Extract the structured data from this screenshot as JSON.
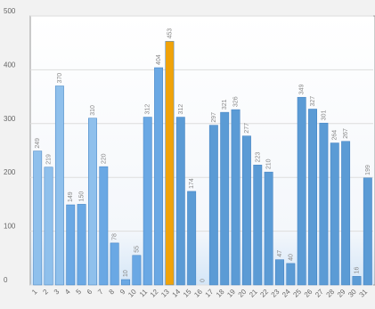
{
  "chart_data": {
    "type": "bar",
    "categories": [
      "1",
      "2",
      "3",
      "4",
      "5",
      "6",
      "7",
      "8",
      "9",
      "10",
      "11",
      "12",
      "13",
      "14",
      "15",
      "16",
      "17",
      "18",
      "19",
      "20",
      "21",
      "22",
      "23",
      "24",
      "25",
      "26",
      "27",
      "28",
      "29",
      "30",
      "31"
    ],
    "values": [
      249,
      219,
      370,
      149,
      150,
      310,
      220,
      78,
      10,
      55,
      312,
      404,
      453,
      312,
      174,
      0,
      297,
      321,
      326,
      277,
      223,
      210,
      47,
      40,
      349,
      327,
      301,
      264,
      267,
      16,
      199
    ],
    "colors": [
      "#8fc0ec",
      "#8fc0ec",
      "#8fc0ec",
      "#6aa8e4",
      "#6aa8e4",
      "#8fc0ec",
      "#6aa8e4",
      "#6aa8e4",
      "#6aa8e4",
      "#6aa8e4",
      "#6aa8e4",
      "#6aa8e4",
      "#f0a30a",
      "#5b9bd5",
      "#5b9bd5",
      "#5b9bd5",
      "#5b9bd5",
      "#5b9bd5",
      "#5b9bd5",
      "#5b9bd5",
      "#5b9bd5",
      "#5b9bd5",
      "#5b9bd5",
      "#5b9bd5",
      "#5b9bd5",
      "#5b9bd5",
      "#5b9bd5",
      "#5b9bd5",
      "#5b9bd5",
      "#5b9bd5",
      "#5b9bd5"
    ],
    "ylim": [
      0,
      500
    ],
    "yticks": [
      0,
      100,
      200,
      300,
      400,
      500
    ],
    "grid": true
  }
}
